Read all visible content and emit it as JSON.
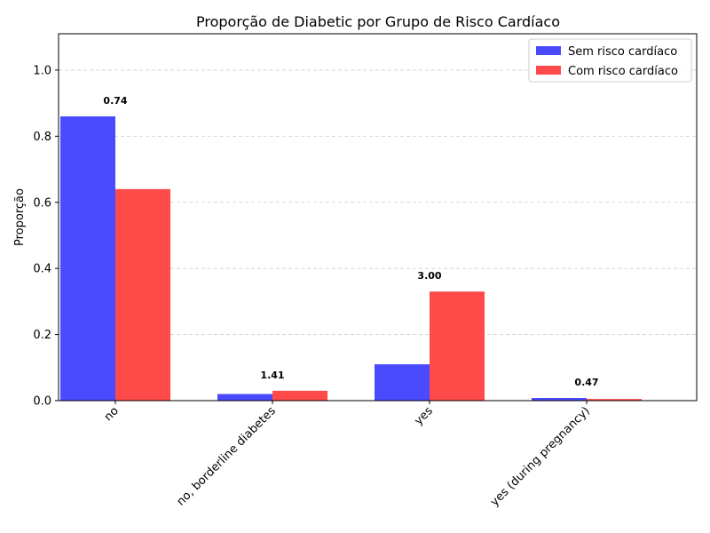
{
  "chart_data": {
    "type": "bar",
    "title": "Proporção de Diabetic por Grupo de Risco Cardíaco",
    "xlabel": "",
    "ylabel": "Proporção",
    "ylim": [
      0,
      1.11
    ],
    "yticks": [
      "0.0",
      "0.2",
      "0.4",
      "0.6",
      "0.8",
      "1.0"
    ],
    "categories": [
      "no",
      "no, borderline diabetes",
      "yes",
      "yes (during pregnancy)"
    ],
    "series": [
      {
        "name": "Sem risco cardíaco",
        "color": "#4a4aff",
        "values": [
          0.86,
          0.02,
          0.11,
          0.008
        ]
      },
      {
        "name": "Com risco cardíaco",
        "color": "#ff4a4a",
        "values": [
          0.64,
          0.03,
          0.33,
          0.005
        ]
      }
    ],
    "annotations": [
      "0.74",
      "1.41",
      "3.00",
      "0.47"
    ],
    "grid": true,
    "legend_position": "top-right"
  }
}
